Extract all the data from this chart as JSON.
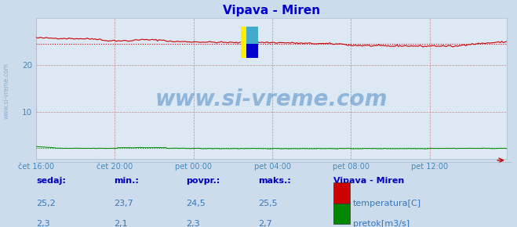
{
  "title": "Vipava - Miren",
  "bg_color": "#ccdcec",
  "plot_bg_color": "#dce8f4",
  "title_color": "#0000cc",
  "axis_label_color": "#4488bb",
  "grid_color": "#cc8888",
  "x_tick_labels": [
    "čet 16:00",
    "čet 20:00",
    "pet 00:00",
    "pet 04:00",
    "pet 08:00",
    "pet 12:00"
  ],
  "x_tick_positions": [
    0,
    48,
    96,
    144,
    192,
    240
  ],
  "ylim": [
    0,
    30
  ],
  "yticks": [
    10,
    20
  ],
  "n_points": 288,
  "temp_avg": 24.5,
  "flow_avg": 2.3,
  "temp_color": "#cc0000",
  "flow_color": "#008800",
  "watermark": "www.si-vreme.com",
  "watermark_color": "#3377bb",
  "legend_title": "Vipava - Miren",
  "bottom_text_color": "#3377bb",
  "bottom_label_color": "#0000bb",
  "headers": [
    "sedaj:",
    "min.:",
    "povpr.:",
    "maks.:"
  ],
  "temp_vals": [
    "25,2",
    "23,7",
    "24,5",
    "25,5"
  ],
  "flow_vals": [
    "2,3",
    "2,1",
    "2,3",
    "2,7"
  ],
  "side_label": "www.si-vreme.com"
}
